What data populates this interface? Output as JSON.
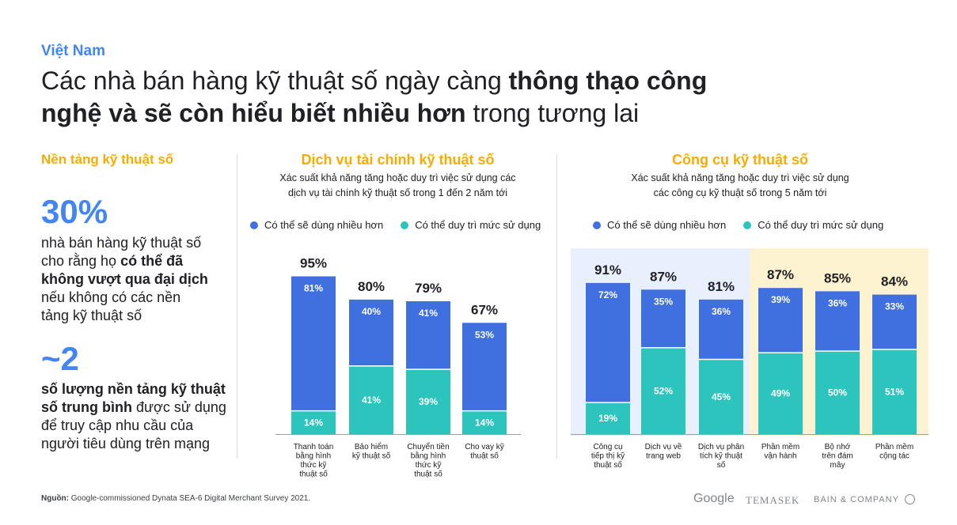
{
  "country": "Việt Nam",
  "title": {
    "part1": "Các nhà bán hàng kỹ thuật số ngày càng ",
    "bold1": "thông thạo công",
    "bold2": "nghệ và sẽ còn hiểu biết nhiều hơn",
    "part2": " trong tương lai"
  },
  "left": {
    "heading": "Nền tảng kỹ thuật số",
    "stat1_value": "30%",
    "stat1_pre": "nhà bán hàng kỹ thuật số cho rằng họ ",
    "stat1_bold": "có thể đã không vượt qua đại dịch",
    "stat1_post": " nếu không có các nền tảng kỹ thuật số",
    "stat2_value": "~2",
    "stat2_bold": "số lượng nền tảng kỹ thuật số trung bình",
    "stat2_post": " được sử dụng để truy cập nhu cầu của người tiêu dùng trên mạng"
  },
  "colors": {
    "more": "#4070E0",
    "maintain": "#2CC4BC",
    "accent": "#F9AB00",
    "bg_blue": "#E8F0FE",
    "bg_yellow": "#FEF3D0"
  },
  "chart_data": [
    {
      "type": "bar",
      "stacked": true,
      "title": "Dịch vụ tài chính kỹ thuật số",
      "subtitle1": "Xác suất khả năng tăng hoặc duy trì việc sử dụng các",
      "subtitle2": "dịch vụ tài chính kỹ thuật số trong 1 đến 2 năm tới",
      "legend": [
        "Có thể sẽ dùng nhiều hơn",
        "Có thể duy trì mức sử dụng"
      ],
      "categories": [
        [
          "Thanh toán",
          "bằng hình",
          "thức kỹ",
          "thuật số"
        ],
        [
          "Bảo hiểm",
          "kỹ thuật số"
        ],
        [
          "Chuyển tiền",
          "bằng hình",
          "thức kỹ",
          "thuật số"
        ],
        [
          "Cho vay kỹ",
          "thuật số"
        ]
      ],
      "totals": [
        "95%",
        "80%",
        "79%",
        "67%"
      ],
      "series": [
        {
          "name": "Có thể duy trì mức sử dụng",
          "values": [
            14,
            41,
            39,
            14
          ]
        },
        {
          "name": "Có thể sẽ dùng nhiều hơn",
          "values": [
            81,
            40,
            41,
            53
          ]
        }
      ],
      "ylim": [
        0,
        100
      ]
    },
    {
      "type": "bar",
      "stacked": true,
      "title": "Công cụ kỹ thuật số",
      "subtitle1": "Xác suất khả năng tăng hoặc duy trì việc sử dụng",
      "subtitle2": "các công cụ kỹ thuật số trong 5 năm tới",
      "legend": [
        "Có thể sẽ dùng nhiều hơn",
        "Có thể duy trì mức sử dụng"
      ],
      "categories": [
        [
          "Công cụ",
          "tiếp thị kỹ",
          "thuật số"
        ],
        [
          "Dịch vụ về",
          "trang web"
        ],
        [
          "Dịch vụ phân",
          "tích kỹ thuật",
          "số"
        ],
        [
          "Phần mềm",
          "vận hành"
        ],
        [
          "Bộ nhớ",
          "trên đám",
          "mây"
        ],
        [
          "Phần mềm",
          "cộng tác"
        ]
      ],
      "totals": [
        "91%",
        "87%",
        "81%",
        "87%",
        "85%",
        "84%"
      ],
      "series": [
        {
          "name": "Có thể duy trì mức sử dụng",
          "values": [
            19,
            52,
            45,
            49,
            50,
            51
          ]
        },
        {
          "name": "Có thể sẽ dùng nhiều hơn",
          "values": [
            72,
            35,
            36,
            39,
            36,
            33
          ]
        }
      ],
      "ylim": [
        0,
        100
      ]
    }
  ],
  "footer": {
    "source_label": "Nguồn:",
    "source_text": " Google-commissioned Dynata SEA-6 Digital Merchant Survey 2021.",
    "logos": [
      "Google",
      "TEMASEK",
      "BAIN & COMPANY"
    ]
  }
}
